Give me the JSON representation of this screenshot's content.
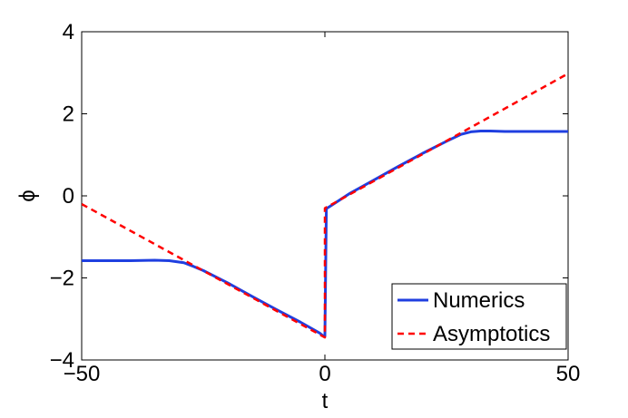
{
  "chart_data": {
    "type": "line",
    "xlabel": "t",
    "ylabel": "ϕ",
    "xlim": [
      -50,
      50
    ],
    "ylim": [
      -4,
      4
    ],
    "xticks": [
      -50,
      0,
      50
    ],
    "yticks": [
      -4,
      -2,
      0,
      2,
      4
    ],
    "grid": false,
    "legend_position": "bottom-right",
    "series": [
      {
        "name": "Numerics",
        "color": "#1f3fe0",
        "style": "solid",
        "x": [
          -50,
          -45,
          -40,
          -35,
          -32,
          -29,
          -27,
          -25,
          -20,
          -15,
          -10,
          -5,
          -1,
          -0.3,
          0,
          0.3,
          1,
          5,
          10,
          15,
          20,
          25,
          28,
          30,
          32,
          34,
          37,
          40,
          45,
          50
        ],
        "y": [
          -1.58,
          -1.58,
          -1.58,
          -1.57,
          -1.58,
          -1.63,
          -1.72,
          -1.82,
          -2.12,
          -2.45,
          -2.77,
          -3.08,
          -3.35,
          -3.42,
          -3.42,
          -0.31,
          -0.26,
          0.05,
          0.38,
          0.71,
          1.03,
          1.33,
          1.5,
          1.56,
          1.58,
          1.58,
          1.57,
          1.57,
          1.57,
          1.57
        ]
      },
      {
        "name": "Asymptotics",
        "color": "#ff0000",
        "style": "dashed",
        "x": [
          -50,
          0,
          0,
          50
        ],
        "y": [
          -0.2,
          -3.45,
          -0.3,
          2.98
        ]
      }
    ]
  }
}
